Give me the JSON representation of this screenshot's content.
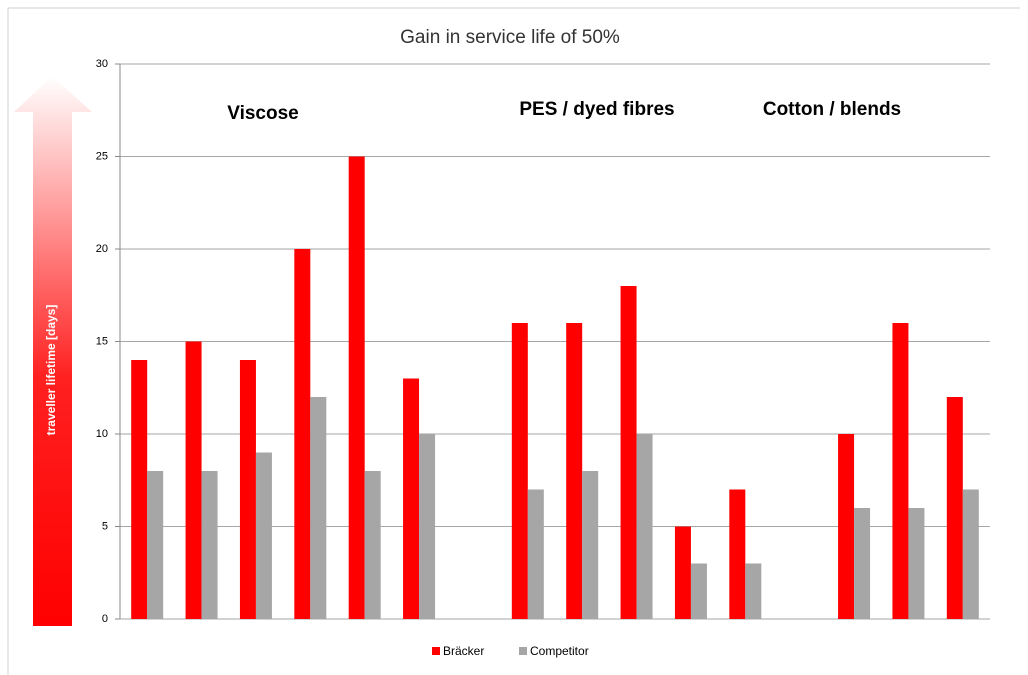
{
  "chart_data": {
    "type": "bar",
    "title": "Gain in service life of 50%",
    "y_label": "traveller lifetime [days]",
    "annotations": [
      "Viscose",
      "PES / dyed fibres",
      "Cotton / blends"
    ],
    "categories": [
      null,
      null,
      null,
      null,
      null,
      null,
      null,
      null,
      null,
      null,
      null,
      null,
      null,
      null,
      null,
      null
    ],
    "series": [
      {
        "name": "Bräcker",
        "color": "#ff0000",
        "values": [
          14,
          15,
          14,
          20,
          25,
          13,
          null,
          16,
          16,
          18,
          5,
          7,
          null,
          10,
          16,
          12
        ]
      },
      {
        "name": "Competitor",
        "color": "#a6a6a6",
        "values": [
          8,
          8,
          9,
          12,
          8,
          10,
          null,
          7,
          8,
          10,
          3,
          3,
          null,
          6,
          6,
          7
        ]
      }
    ],
    "ylim": [
      0,
      30
    ],
    "yticks": [
      0,
      5,
      10,
      15,
      20,
      25,
      30
    ],
    "grid": true,
    "legend": "bottom"
  }
}
